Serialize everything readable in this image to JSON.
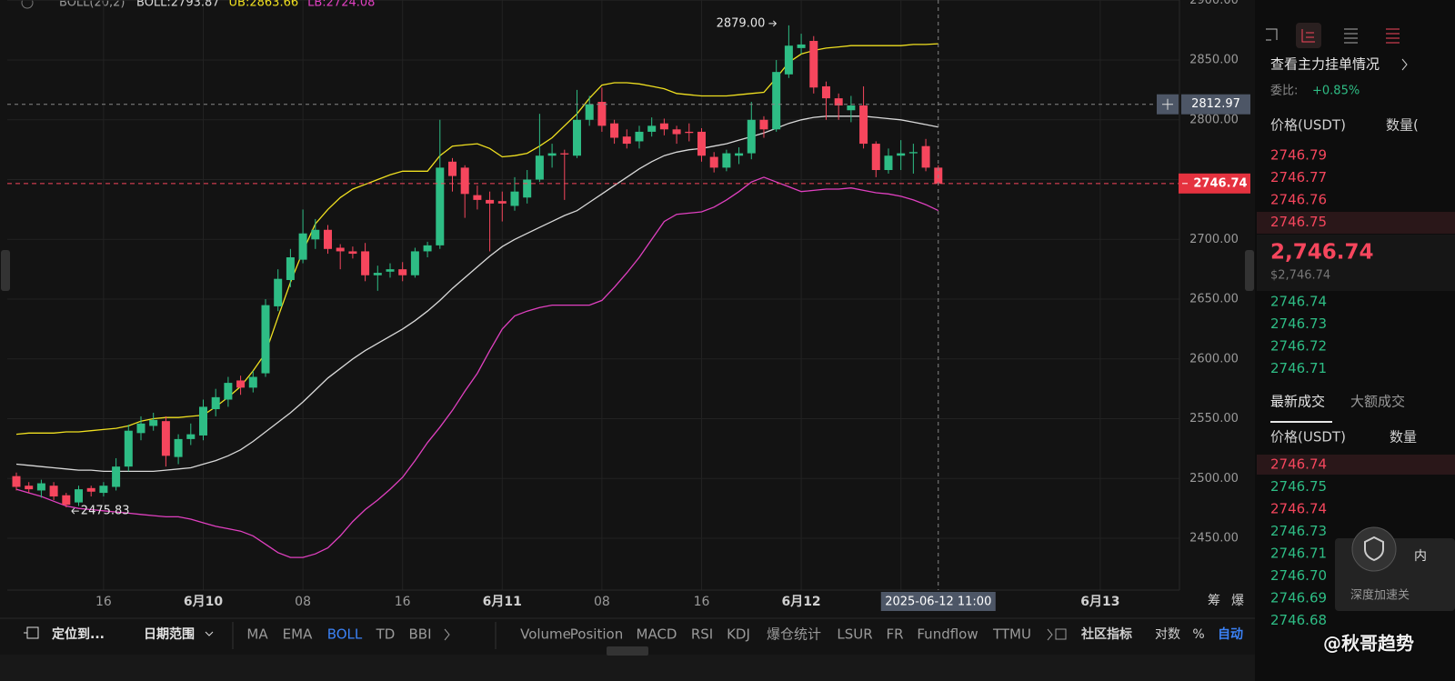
{
  "chart_data": {
    "type": "candlestick",
    "indicator": "BOLL(20,2)",
    "open": [
      2502,
      2494,
      2490,
      2494,
      2486,
      2480,
      2492,
      2488,
      2493,
      2510,
      2538,
      2544,
      2548,
      2518,
      2533,
      2536,
      2558,
      2566,
      2582,
      2576,
      2588,
      2644,
      2666,
      2683,
      2700,
      2708,
      2693,
      2690,
      2690,
      2670,
      2673,
      2675,
      2670,
      2690,
      2695,
      2765,
      2760,
      2737,
      2733,
      2732,
      2728,
      2735,
      2750,
      2770,
      2772,
      2770,
      2800,
      2815,
      2797,
      2786,
      2782,
      2790,
      2797,
      2792,
      2790,
      2790,
      2769,
      2760,
      2770,
      2772,
      2800,
      2792,
      2838,
      2860,
      2866,
      2828,
      2818,
      2808,
      2812,
      2780,
      2758,
      2770,
      2772,
      2778,
      2760
    ],
    "high": [
      2505,
      2497,
      2499,
      2497,
      2488,
      2494,
      2494,
      2497,
      2517,
      2545,
      2552,
      2555,
      2552,
      2537,
      2546,
      2566,
      2575,
      2585,
      2586,
      2590,
      2650,
      2675,
      2692,
      2725,
      2717,
      2712,
      2696,
      2694,
      2697,
      2678,
      2680,
      2681,
      2693,
      2698,
      2800,
      2768,
      2762,
      2745,
      2740,
      2740,
      2752,
      2758,
      2805,
      2780,
      2775,
      2825,
      2820,
      2827,
      2800,
      2792,
      2795,
      2802,
      2801,
      2795,
      2797,
      2793,
      2773,
      2775,
      2777,
      2815,
      2803,
      2850,
      2879,
      2872,
      2870,
      2832,
      2822,
      2820,
      2828,
      2782,
      2776,
      2783,
      2780,
      2784,
      2762
    ],
    "low": [
      2490,
      2488,
      2484,
      2482,
      2475.83,
      2477,
      2485,
      2485,
      2490,
      2506,
      2532,
      2540,
      2510,
      2512,
      2528,
      2532,
      2552,
      2560,
      2570,
      2572,
      2585,
      2640,
      2660,
      2680,
      2692,
      2688,
      2675,
      2684,
      2665,
      2657,
      2668,
      2665,
      2668,
      2685,
      2692,
      2740,
      2718,
      2725,
      2690,
      2715,
      2724,
      2730,
      2748,
      2760,
      2733,
      2768,
      2795,
      2790,
      2780,
      2776,
      2776,
      2786,
      2787,
      2780,
      2782,
      2765,
      2756,
      2757,
      2763,
      2767,
      2785,
      2790,
      2835,
      2855,
      2822,
      2800,
      2800,
      2798,
      2776,
      2752,
      2755,
      2758,
      2755,
      2757,
      2745
    ],
    "close": [
      2493,
      2491,
      2496,
      2485,
      2478,
      2491,
      2489,
      2494,
      2510,
      2540,
      2546,
      2549,
      2519,
      2533,
      2537,
      2560,
      2568,
      2580,
      2576,
      2585,
      2645,
      2667,
      2685,
      2705,
      2708,
      2692,
      2690,
      2688,
      2670,
      2672,
      2675,
      2670,
      2690,
      2695,
      2760,
      2753,
      2738,
      2733,
      2730,
      2730,
      2740,
      2750,
      2770,
      2772,
      2771,
      2800,
      2813,
      2795,
      2785,
      2780,
      2790,
      2795,
      2792,
      2788,
      2789,
      2770,
      2760,
      2772,
      2772,
      2800,
      2792,
      2840,
      2862,
      2863,
      2827,
      2818,
      2812,
      2812,
      2780,
      2758,
      2770,
      2772,
      2773,
      2760,
      2746.74
    ],
    "up_color": "#2ebd85",
    "down_color": "#f6465d",
    "series": [
      {
        "name": "BOLL",
        "label": "BOLL:2793.87",
        "color": "#d9d9d9",
        "values": [
          2512,
          2511,
          2510,
          2509,
          2508,
          2507,
          2507,
          2506,
          2506,
          2506,
          2506,
          2506,
          2507,
          2508,
          2509,
          2512,
          2515,
          2519,
          2524,
          2531,
          2539,
          2547,
          2555,
          2564,
          2574,
          2584,
          2592,
          2600,
          2607,
          2613,
          2619,
          2625,
          2632,
          2640,
          2649,
          2659,
          2668,
          2677,
          2686,
          2694,
          2700,
          2705,
          2710,
          2715,
          2720,
          2724,
          2731,
          2738,
          2745,
          2752,
          2759,
          2765,
          2770,
          2773,
          2775,
          2776,
          2778,
          2780,
          2783,
          2786,
          2789,
          2793,
          2797,
          2800,
          2802,
          2803,
          2803,
          2803,
          2803,
          2802,
          2801,
          2800,
          2798,
          2796,
          2793.87
        ]
      },
      {
        "name": "UB",
        "label": "UB:2863.66",
        "color": "#f0e020",
        "values": [
          2537,
          2538,
          2538,
          2538,
          2539,
          2539,
          2540,
          2541,
          2542,
          2544,
          2548,
          2550,
          2551,
          2551,
          2552,
          2553,
          2560,
          2568,
          2577,
          2590,
          2605,
          2635,
          2664,
          2690,
          2713,
          2725,
          2735,
          2742,
          2746,
          2750,
          2754,
          2757,
          2757,
          2757,
          2770,
          2778,
          2779,
          2780,
          2776,
          2769,
          2770,
          2772,
          2778,
          2785,
          2795,
          2805,
          2818,
          2829,
          2831,
          2831,
          2830,
          2828,
          2826,
          2822,
          2821,
          2820,
          2820,
          2820,
          2821,
          2822,
          2823,
          2835,
          2848,
          2855,
          2858,
          2860,
          2861,
          2862,
          2862,
          2862,
          2862,
          2862,
          2863,
          2863,
          2863.66
        ]
      },
      {
        "name": "LB",
        "label": "LB:2724.08",
        "color": "#e040c0",
        "values": [
          2491,
          2488,
          2485,
          2481,
          2477,
          2475,
          2474,
          2473,
          2472,
          2471,
          2470,
          2469,
          2468,
          2468,
          2466,
          2463,
          2460,
          2458,
          2456,
          2452,
          2445,
          2438,
          2434,
          2434,
          2437,
          2442,
          2452,
          2464,
          2474,
          2482,
          2491,
          2501,
          2515,
          2530,
          2543,
          2557,
          2573,
          2588,
          2607,
          2625,
          2636,
          2640,
          2643,
          2645,
          2645,
          2645,
          2645,
          2649,
          2660,
          2672,
          2685,
          2700,
          2715,
          2721,
          2722,
          2723,
          2727,
          2733,
          2740,
          2748,
          2752,
          2748,
          2744,
          2740,
          2741,
          2742,
          2742,
          2743,
          2741,
          2739,
          2738,
          2736,
          2733,
          2729,
          2724.08
        ]
      }
    ],
    "ylim": [
      2406.7,
      2900.2
    ],
    "yticks": [
      {
        "value": 2450,
        "label": "2450.00"
      },
      {
        "value": 2500,
        "label": "2500.00"
      },
      {
        "value": 2550,
        "label": "2550.00"
      },
      {
        "value": 2600,
        "label": "2600.00"
      },
      {
        "value": 2650,
        "label": "2650.00"
      },
      {
        "value": 2700,
        "label": "2700.00"
      },
      {
        "value": 2750,
        "label": "2750.00"
      },
      {
        "value": 2800,
        "label": "2800.00"
      },
      {
        "value": 2850,
        "label": "2850.00"
      },
      {
        "value": 2900,
        "label": "2900.00"
      }
    ],
    "xlim": [
      -0.73,
      93.36
    ],
    "xticks": [
      {
        "value": 7,
        "label": "16"
      },
      {
        "value": 15,
        "label": "6月10"
      },
      {
        "value": 23,
        "label": "08"
      },
      {
        "value": 31,
        "label": "16"
      },
      {
        "value": 39,
        "label": "6月11"
      },
      {
        "value": 47,
        "label": "08"
      },
      {
        "value": 55,
        "label": "16"
      },
      {
        "value": 63,
        "label": "6月12"
      },
      {
        "value": 71,
        "label": "16"
      },
      {
        "value": 87,
        "label": "6月13"
      }
    ],
    "grid": true,
    "max_label": {
      "value": 2879,
      "label": "2879.00"
    },
    "min_label": {
      "value": 2475.83,
      "label": "2475.83"
    },
    "crosshair": {
      "price": {
        "value": 2812.97,
        "label": "2812.97"
      },
      "time": "2025-06-12 11:00"
    },
    "last_price": {
      "value": 2746.74,
      "label": "2746.74"
    }
  },
  "axis_corner": [
    "筹",
    "爆"
  ],
  "toolbar": {
    "locate": "定位到...",
    "date_range": "日期范围",
    "main_indicators": [
      "MA",
      "EMA",
      "BOLL",
      "TD",
      "BBI"
    ],
    "sub_indicators": [
      "Volume",
      "Position",
      "MACD",
      "RSI",
      "KDJ",
      "爆仓统计",
      "LSUR",
      "FR",
      "Fundflow",
      "TTMU"
    ],
    "community": "社区指标",
    "log": "对数",
    "percent": "%",
    "auto": "自动"
  },
  "order_book": {
    "link": "查看主力挂单情况",
    "ratio_label": "委比:",
    "ratio": "+0.85%",
    "headers": [
      "价格(USDT)",
      "数量("
    ],
    "asks": [
      "2746.79",
      "2746.77",
      "2746.76",
      "2746.75"
    ],
    "last": "2,746.74",
    "last_usd": "$2,746.74",
    "bids": [
      "2746.74",
      "2746.73",
      "2746.72",
      "2746.71"
    ]
  },
  "trades": {
    "tabs": [
      "最新成交",
      "大额成交"
    ],
    "headers": [
      "价格(USDT)",
      "数量"
    ],
    "rows": [
      {
        "price": "2746.74",
        "side": "sell"
      },
      {
        "price": "2746.75",
        "side": "buy"
      },
      {
        "price": "2746.74",
        "side": "sell"
      },
      {
        "price": "2746.73",
        "side": "buy"
      },
      {
        "price": "2746.71",
        "side": "buy"
      },
      {
        "price": "2746.70",
        "side": "buy"
      },
      {
        "price": "2746.69",
        "side": "buy"
      },
      {
        "price": "2746.68",
        "side": "buy"
      }
    ]
  },
  "overlay": {
    "text": "深度加速关",
    "side": "内"
  },
  "watermark": "@秋哥趋势"
}
